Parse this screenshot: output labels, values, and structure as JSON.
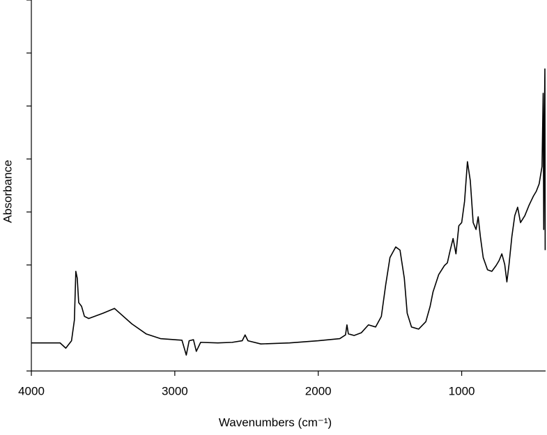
{
  "chart_data": {
    "type": "line",
    "x_label": "Wavenumbers (cm⁻¹)",
    "y_label": "Absorbance",
    "xlim": [
      4000,
      415
    ],
    "xticks": [
      4000,
      3000,
      2000,
      1000
    ],
    "ylim": [
      0,
      7
    ],
    "yticks": [
      0,
      1,
      2,
      3,
      4,
      5,
      6,
      7
    ],
    "grid": false,
    "series": [
      {
        "color": "#000000",
        "x": [
          4000,
          3800,
          3760,
          3720,
          3700,
          3690,
          3680,
          3670,
          3650,
          3630,
          3600,
          3500,
          3420,
          3400,
          3300,
          3200,
          3100,
          3000,
          2950,
          2920,
          2900,
          2870,
          2850,
          2820,
          2700,
          2600,
          2530,
          2510,
          2490,
          2400,
          2200,
          2000,
          1850,
          1810,
          1800,
          1790,
          1750,
          1700,
          1650,
          1600,
          1560,
          1530,
          1500,
          1460,
          1430,
          1400,
          1380,
          1350,
          1300,
          1250,
          1220,
          1200,
          1160,
          1120,
          1100,
          1080,
          1060,
          1040,
          1020,
          1000,
          980,
          960,
          940,
          920,
          900,
          885,
          870,
          850,
          820,
          790,
          760,
          740,
          720,
          700,
          685,
          670,
          650,
          630,
          610,
          590,
          560,
          530,
          500,
          480,
          460,
          440,
          432,
          428,
          424,
          420,
          418
        ],
        "values": [
          0.53,
          0.53,
          0.43,
          0.57,
          0.96,
          1.88,
          1.75,
          1.29,
          1.22,
          1.03,
          0.99,
          1.09,
          1.18,
          1.13,
          0.89,
          0.7,
          0.61,
          0.59,
          0.58,
          0.3,
          0.57,
          0.59,
          0.37,
          0.54,
          0.53,
          0.54,
          0.57,
          0.68,
          0.57,
          0.51,
          0.53,
          0.57,
          0.61,
          0.68,
          0.87,
          0.7,
          0.67,
          0.72,
          0.87,
          0.83,
          1.03,
          1.62,
          2.14,
          2.34,
          2.28,
          1.75,
          1.09,
          0.83,
          0.79,
          0.93,
          1.22,
          1.49,
          1.82,
          1.99,
          2.04,
          2.28,
          2.5,
          2.21,
          2.74,
          2.8,
          3.2,
          3.95,
          3.59,
          2.8,
          2.67,
          2.91,
          2.54,
          2.14,
          1.91,
          1.88,
          1.99,
          2.08,
          2.21,
          2.01,
          1.68,
          2.01,
          2.54,
          2.93,
          3.09,
          2.8,
          2.93,
          3.13,
          3.3,
          3.39,
          3.53,
          3.86,
          5.24,
          2.67,
          4.64,
          5.7,
          2.28
        ]
      }
    ]
  }
}
